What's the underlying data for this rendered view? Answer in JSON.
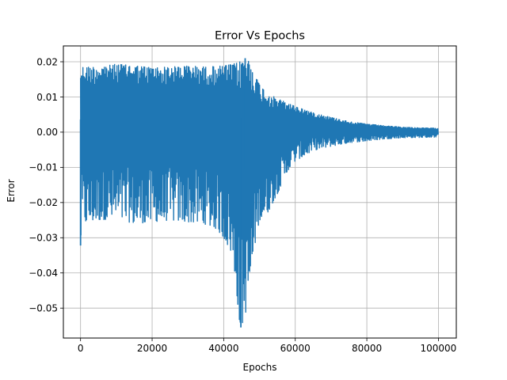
{
  "chart_data": {
    "type": "line",
    "title": "Error Vs Epochs",
    "xlabel": "Epochs",
    "ylabel": "Error",
    "xlim": [
      -4800,
      105000
    ],
    "ylim": [
      -0.0585,
      0.0245
    ],
    "xticks": [
      0,
      20000,
      40000,
      60000,
      80000,
      100000
    ],
    "xtick_labels": [
      "0",
      "20000",
      "40000",
      "60000",
      "80000",
      "100000"
    ],
    "yticks": [
      0.02,
      0.01,
      0.0,
      -0.01,
      -0.02,
      -0.03,
      -0.04,
      -0.05
    ],
    "ytick_labels": [
      "0.02",
      "0.01",
      "0.00",
      "−0.01",
      "−0.02",
      "−0.03",
      "−0.04",
      "−0.05"
    ],
    "grid": true,
    "series": [
      {
        "color": "#1f77b4",
        "upper_envelope": {
          "x": [
            0,
            500,
            5000,
            10000,
            15000,
            20000,
            25000,
            30000,
            35000,
            40000,
            42000,
            44000,
            45000,
            46000,
            47000,
            48000,
            50000,
            52000,
            55000,
            58000,
            60000,
            65000,
            70000,
            75000,
            80000,
            85000,
            90000,
            95000,
            100000
          ],
          "y": [
            0.018,
            0.0185,
            0.0185,
            0.0193,
            0.0189,
            0.0183,
            0.0185,
            0.0188,
            0.0185,
            0.0188,
            0.0192,
            0.0197,
            0.0203,
            0.021,
            0.0202,
            0.018,
            0.0135,
            0.0112,
            0.0095,
            0.0082,
            0.0073,
            0.0055,
            0.0042,
            0.003,
            0.0023,
            0.0018,
            0.0014,
            0.0012,
            0.0011
          ]
        },
        "lower_envelope": {
          "x": [
            0,
            500,
            5000,
            10000,
            15000,
            20000,
            25000,
            30000,
            35000,
            38000,
            40000,
            42000,
            43500,
            44500,
            45500,
            46500,
            47500,
            49000,
            50000,
            52000,
            55000,
            58000,
            60000,
            65000,
            70000,
            75000,
            80000,
            85000,
            90000,
            95000,
            100000
          ],
          "y": [
            -0.0322,
            -0.026,
            -0.025,
            -0.0245,
            -0.026,
            -0.0255,
            -0.025,
            -0.0255,
            -0.0262,
            -0.0275,
            -0.03,
            -0.034,
            -0.044,
            -0.0555,
            -0.054,
            -0.0497,
            -0.043,
            -0.03,
            -0.025,
            -0.0235,
            -0.0175,
            -0.0108,
            -0.0082,
            -0.0052,
            -0.004,
            -0.003,
            -0.0025,
            -0.0019,
            -0.0016,
            -0.0015,
            -0.0014
          ]
        },
        "notable_points": [
          {
            "x": 0,
            "y": -0.0322
          },
          {
            "x": 44800,
            "y": -0.0555
          },
          {
            "x": 46000,
            "y": 0.021
          }
        ]
      }
    ]
  }
}
